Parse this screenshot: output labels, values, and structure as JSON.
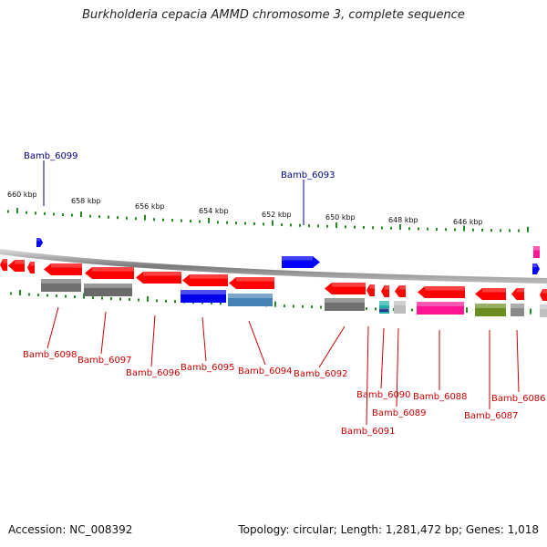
{
  "title": "Burkholderia cepacia AMMD chromosome 3, complete sequence",
  "accession_label": "Accession: NC_008392",
  "summary_label": "Topology: circular; Length: 1,281,472 bp; Genes: 1,018",
  "colors": {
    "backbone": "#8a8a8a",
    "ruler_dots": "#228b22",
    "label_forward": "#00008b",
    "label_reverse": "#cc0000",
    "forward_gene": "#0000ff",
    "reverse_gene": "#ff0000"
  },
  "ruler": {
    "unit": "kbp",
    "labels": [
      "660 kbp",
      "658 kbp",
      "656 kbp",
      "654 kbp",
      "652 kbp",
      "650 kbp",
      "648 kbp",
      "646 kbp"
    ]
  },
  "genes": [
    {
      "name": "Bamb_6099",
      "strand": "forward"
    },
    {
      "name": "Bamb_6093",
      "strand": "forward"
    },
    {
      "name": "Bamb_6098",
      "strand": "reverse"
    },
    {
      "name": "Bamb_6097",
      "strand": "reverse"
    },
    {
      "name": "Bamb_6096",
      "strand": "reverse"
    },
    {
      "name": "Bamb_6095",
      "strand": "reverse"
    },
    {
      "name": "Bamb_6094",
      "strand": "reverse"
    },
    {
      "name": "Bamb_6092",
      "strand": "reverse"
    },
    {
      "name": "Bamb_6091",
      "strand": "reverse"
    },
    {
      "name": "Bamb_6090",
      "strand": "reverse"
    },
    {
      "name": "Bamb_6089",
      "strand": "reverse"
    },
    {
      "name": "Bamb_6088",
      "strand": "reverse"
    },
    {
      "name": "Bamb_6087",
      "strand": "reverse"
    },
    {
      "name": "Bamb_6086",
      "strand": "reverse"
    }
  ]
}
